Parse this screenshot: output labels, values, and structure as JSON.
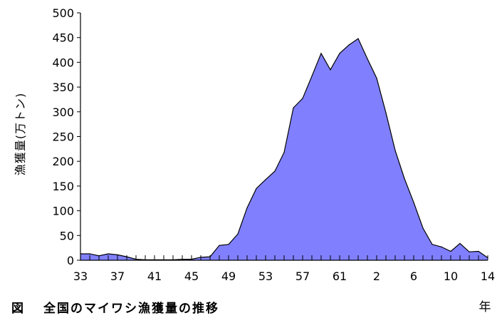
{
  "caption": {
    "fig_label": "図",
    "title": "全国のマイワシ漁獲量の推移"
  },
  "chart_data": {
    "type": "area",
    "title": "",
    "ylabel": "漁獲量(万トン)",
    "xlabel": "年",
    "ylim": [
      0,
      500
    ],
    "yticks": [
      0,
      50,
      100,
      150,
      200,
      250,
      300,
      350,
      400,
      450,
      500
    ],
    "xtick_labels": [
      "33",
      "37",
      "41",
      "45",
      "49",
      "53",
      "57",
      "61",
      "2",
      "6",
      "10",
      "14"
    ],
    "grid": false,
    "fill_color": "#8080ff",
    "line_color": "#000000",
    "x": [
      "33",
      "34",
      "35",
      "36",
      "37",
      "38",
      "39",
      "40",
      "41",
      "42",
      "43",
      "44",
      "45",
      "46",
      "47",
      "48",
      "49",
      "50",
      "51",
      "52",
      "53",
      "54",
      "55",
      "56",
      "57",
      "58",
      "59",
      "60",
      "61",
      "62",
      "63",
      "1",
      "2",
      "3",
      "4",
      "5",
      "6",
      "7",
      "8",
      "9",
      "10",
      "11",
      "12",
      "13",
      "14"
    ],
    "values": [
      13,
      13,
      9,
      13,
      11,
      7,
      2,
      1,
      1,
      1,
      1,
      2,
      2,
      6,
      7,
      30,
      32,
      53,
      106,
      145,
      163,
      180,
      218,
      308,
      327,
      372,
      418,
      385,
      418,
      435,
      448,
      407,
      368,
      298,
      222,
      165,
      117,
      65,
      32,
      27,
      18,
      34,
      17,
      18,
      5
    ]
  }
}
